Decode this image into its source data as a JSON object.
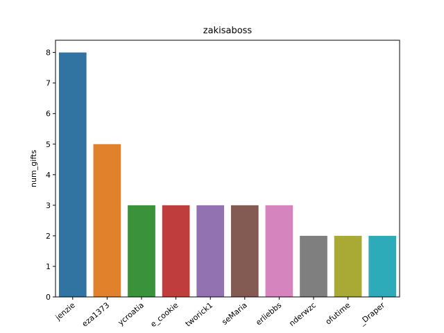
{
  "chart_data": {
    "type": "bar",
    "title": "zakisaboss",
    "xlabel": "",
    "ylabel": "num_gifts",
    "ylim": [
      0,
      8.4
    ],
    "yticks": [
      0,
      1,
      2,
      3,
      4,
      5,
      6,
      7,
      8
    ],
    "grid": false,
    "categories": [
      "jenzie",
      "eza1373",
      "ycroatia",
      "e_cookie",
      "tworick1",
      "seMaria",
      "erliebbs",
      "nderwzc",
      "ofutime",
      "_Draper"
    ],
    "values": [
      8,
      5,
      3,
      3,
      3,
      3,
      3,
      2,
      2,
      2
    ],
    "colors": [
      "#3274a1",
      "#e1812c",
      "#3a923a",
      "#c03d3e",
      "#9372b2",
      "#845b53",
      "#d684bd",
      "#7f7f7f",
      "#a9aa35",
      "#2eabb8"
    ]
  }
}
